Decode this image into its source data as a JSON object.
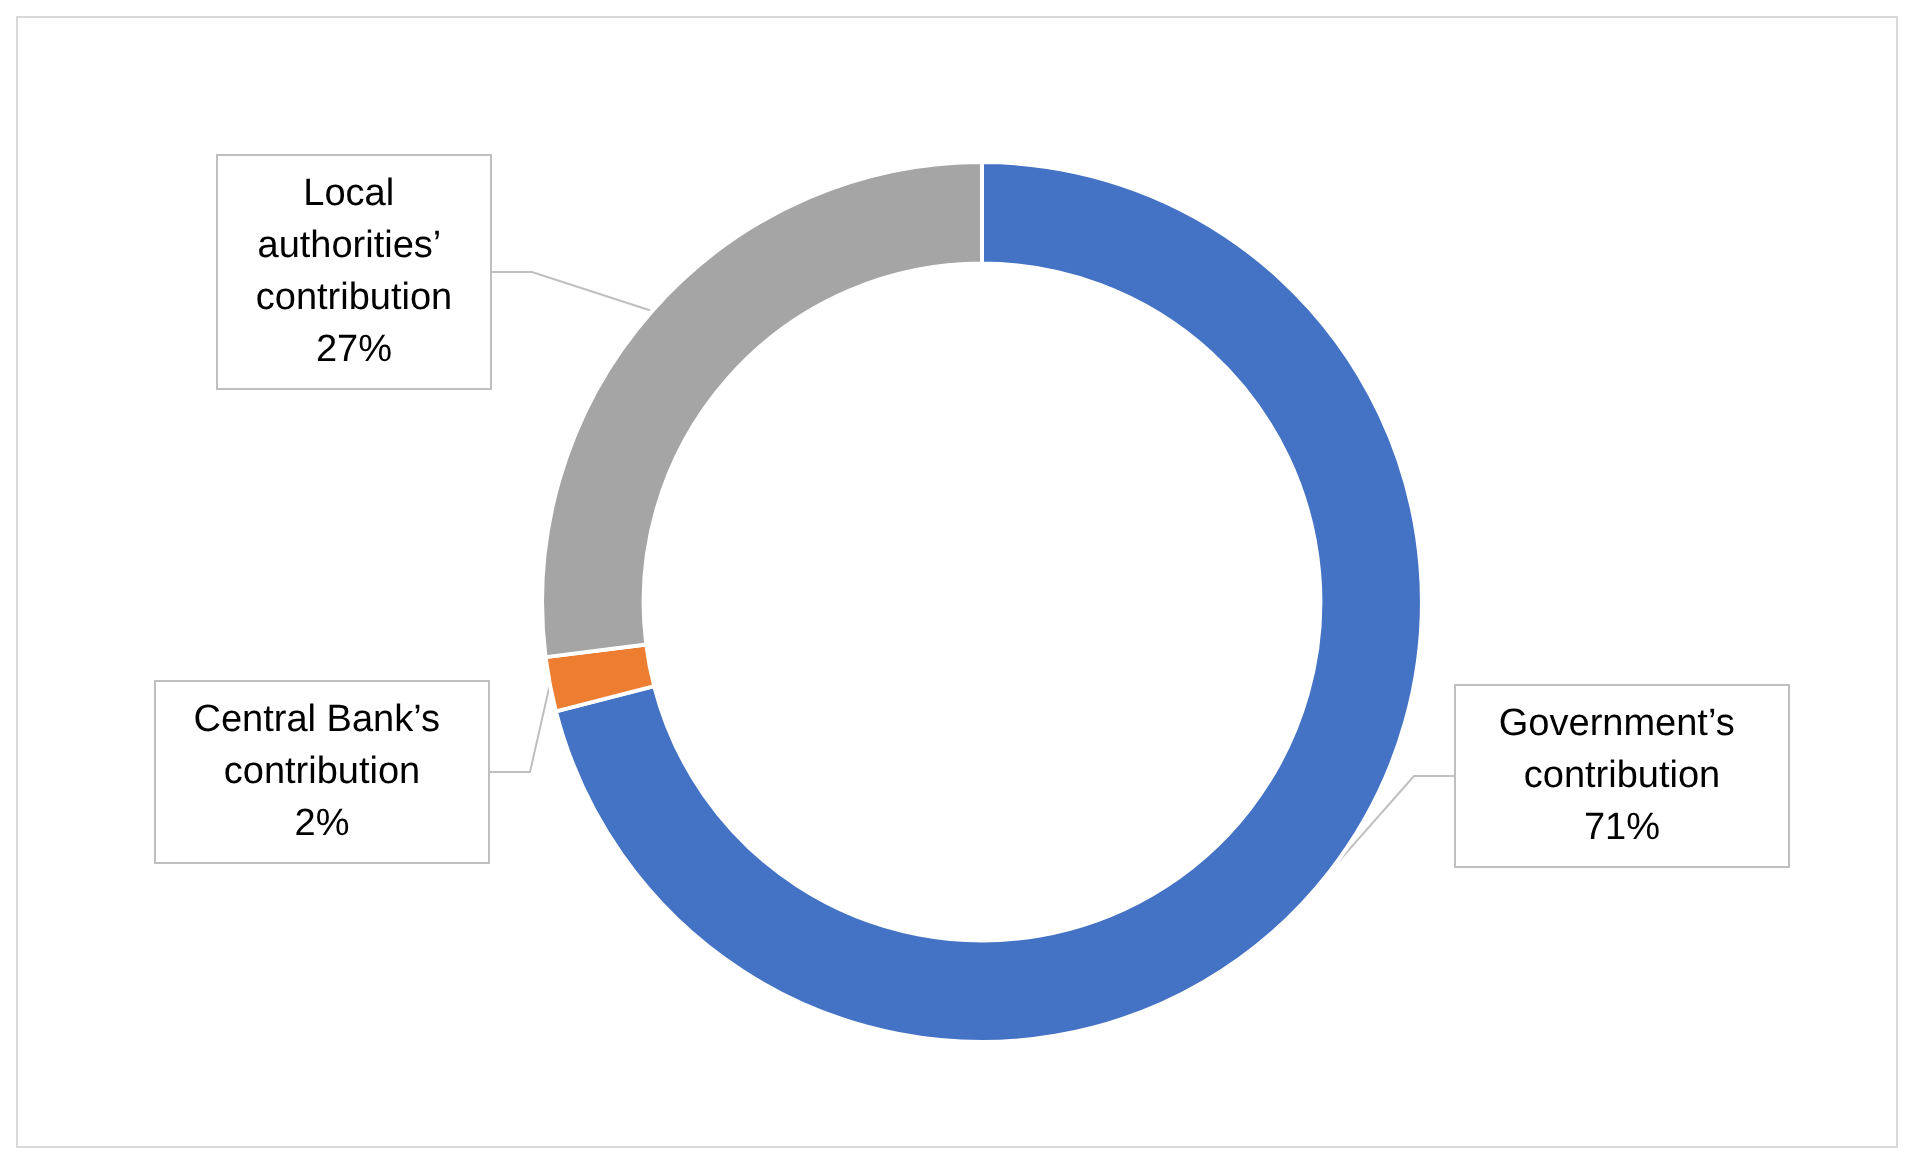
{
  "chart_data": {
    "type": "donut",
    "categories": [
      "Government’s contribution",
      "Central Bank’s contribution",
      "Local authorities’ contribution"
    ],
    "values": [
      71,
      2,
      27
    ],
    "value_labels": [
      "71%",
      "2%",
      "27%"
    ],
    "colors": [
      "#4472c4",
      "#ed7d31",
      "#a5a5a5"
    ],
    "legend": false
  }
}
